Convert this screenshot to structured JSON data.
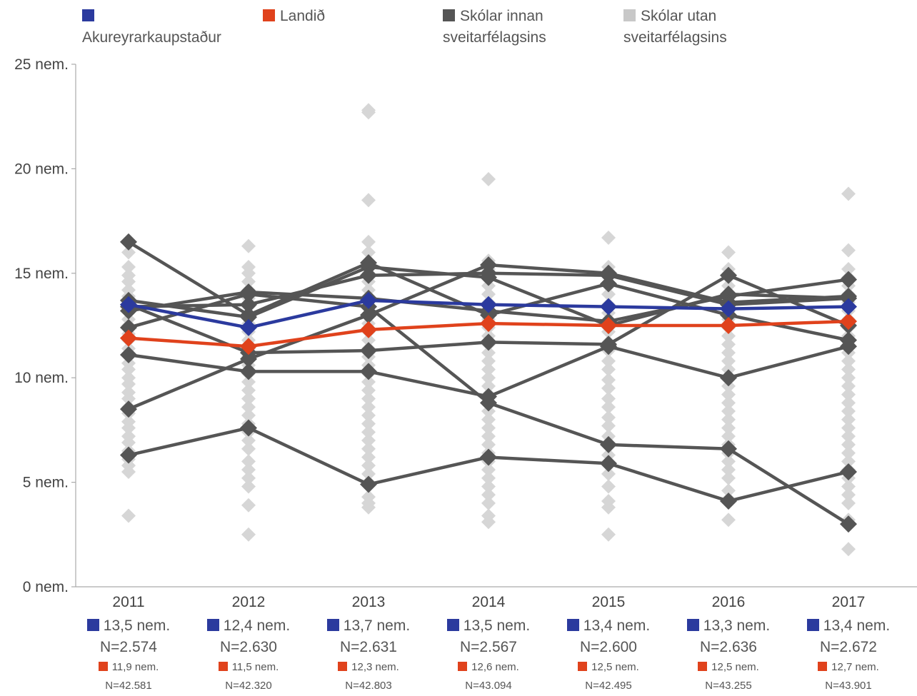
{
  "legend": [
    {
      "label": "Akureyrarkaupstaður",
      "color": "#2b3a9e"
    },
    {
      "label": "Landið",
      "color": "#e0421c"
    },
    {
      "label": "Skólar innan sveitarfélagsins",
      "color": "#555555"
    },
    {
      "label": "Skólar utan sveitarfélagsins",
      "color": "#c8c8c8"
    }
  ],
  "stats": [
    {
      "muni_value": "13,5 nem.",
      "muni_n": "N=2.574",
      "country_value": "11,9 nem.",
      "country_n": "N=42.581"
    },
    {
      "muni_value": "12,4 nem.",
      "muni_n": "N=2.630",
      "country_value": "11,5 nem.",
      "country_n": "N=42.320"
    },
    {
      "muni_value": "13,7 nem.",
      "muni_n": "N=2.631",
      "country_value": "12,3 nem.",
      "country_n": "N=42.803"
    },
    {
      "muni_value": "13,5 nem.",
      "muni_n": "N=2.567",
      "country_value": "12,6 nem.",
      "country_n": "N=43.094"
    },
    {
      "muni_value": "13,4 nem.",
      "muni_n": "N=2.600",
      "country_value": "12,5 nem.",
      "country_n": "N=42.495"
    },
    {
      "muni_value": "13,3 nem.",
      "muni_n": "N=2.636",
      "country_value": "12,5 nem.",
      "country_n": "N=43.255"
    },
    {
      "muni_value": "13,4 nem.",
      "muni_n": "N=2.672",
      "country_value": "12,7 nem.",
      "country_n": "N=43.901"
    }
  ],
  "chart_data": {
    "type": "line",
    "x": [
      "2011",
      "2012",
      "2013",
      "2014",
      "2015",
      "2016",
      "2017"
    ],
    "ylim": [
      0,
      25
    ],
    "yticks": [
      0,
      5,
      10,
      15,
      20,
      25
    ],
    "ytick_labels": [
      "0 nem.",
      "5 nem.",
      "10 nem.",
      "15 nem.",
      "20 nem.",
      "25 nem."
    ],
    "grid": false,
    "legend_position": "top",
    "municipality": {
      "name": "Akureyrarkaupstaður",
      "color": "#2b3a9e",
      "values": [
        13.5,
        12.4,
        13.7,
        13.5,
        13.4,
        13.3,
        13.4
      ]
    },
    "country": {
      "name": "Landið",
      "color": "#e0421c",
      "values": [
        11.9,
        11.5,
        12.3,
        12.6,
        12.5,
        12.5,
        12.7
      ]
    },
    "schools_inside": {
      "name": "Skólar innan sveitarfélagsins",
      "color": "#555555",
      "series": [
        [
          16.5,
          13.0,
          15.5,
          13.0,
          14.5,
          13.0,
          11.8
        ],
        [
          13.7,
          12.9,
          15.3,
          14.8,
          12.5,
          14.0,
          13.8
        ],
        [
          13.2,
          14.1,
          13.8,
          13.2,
          12.7,
          13.9,
          14.7
        ],
        [
          12.4,
          14.0,
          13.4,
          8.8,
          6.8,
          6.6,
          3.0
        ],
        [
          11.1,
          10.3,
          10.3,
          9.1,
          11.5,
          10.0,
          11.5
        ],
        [
          8.5,
          10.9,
          13.0,
          15.4,
          15.0,
          13.6,
          13.9
        ],
        [
          6.3,
          7.6,
          4.9,
          6.2,
          5.9,
          4.1,
          5.5
        ],
        [
          13.5,
          11.2,
          11.3,
          11.7,
          11.6,
          14.9,
          12.5
        ],
        [
          13.4,
          13.5,
          14.9,
          15.0,
          14.9,
          13.5,
          13.8
        ]
      ]
    },
    "schools_outside": {
      "name": "Skólar utan sveitarfélagsins",
      "color": "#d6d6d6",
      "values": [
        [
          3.4,
          5.5,
          5.8,
          6.1,
          6.5,
          6.9,
          7.2,
          7.6,
          7.9,
          8.3,
          8.6,
          9.0,
          9.3,
          9.7,
          10.0,
          10.4,
          10.7,
          11.1,
          11.4,
          11.8,
          12.1,
          12.5,
          12.8,
          13.2,
          13.5,
          13.9,
          14.2,
          14.6,
          14.9,
          15.3,
          16.0
        ],
        [
          2.5,
          3.9,
          4.8,
          5.2,
          5.6,
          6.0,
          6.6,
          7.0,
          7.4,
          7.8,
          8.2,
          8.6,
          9.0,
          9.4,
          9.8,
          10.2,
          10.6,
          11.0,
          11.4,
          11.8,
          12.2,
          12.6,
          13.0,
          13.4,
          13.8,
          14.2,
          14.6,
          15.0,
          15.3,
          16.3
        ],
        [
          3.8,
          4.0,
          4.3,
          5.0,
          5.4,
          5.8,
          6.2,
          6.6,
          7.0,
          7.4,
          7.8,
          8.2,
          8.6,
          9.0,
          9.4,
          9.8,
          10.2,
          10.6,
          11.0,
          11.4,
          11.8,
          12.2,
          12.6,
          13.0,
          13.4,
          13.8,
          14.2,
          14.6,
          15.0,
          16.0,
          16.5,
          18.5,
          22.7,
          22.8
        ],
        [
          3.1,
          3.4,
          4.0,
          4.4,
          4.8,
          5.2,
          5.6,
          6.0,
          6.4,
          6.8,
          7.2,
          7.6,
          8.0,
          8.4,
          8.8,
          9.2,
          9.6,
          10.0,
          10.4,
          10.8,
          11.2,
          11.6,
          12.0,
          12.4,
          12.8,
          13.2,
          13.6,
          14.0,
          14.4,
          14.8,
          15.2,
          15.6,
          19.5
        ],
        [
          2.5,
          3.8,
          4.1,
          4.8,
          5.4,
          5.9,
          6.3,
          6.8,
          7.2,
          7.7,
          8.1,
          8.6,
          9.0,
          9.5,
          9.9,
          10.4,
          10.8,
          11.3,
          11.7,
          12.2,
          12.6,
          13.1,
          13.5,
          14.0,
          14.4,
          14.9,
          15.3,
          16.7
        ],
        [
          3.2,
          4.2,
          4.6,
          5.2,
          5.6,
          6.0,
          6.4,
          6.8,
          7.2,
          7.6,
          8.0,
          8.4,
          8.8,
          9.2,
          9.6,
          10.0,
          10.4,
          10.8,
          11.2,
          11.6,
          12.0,
          12.4,
          12.8,
          13.2,
          13.6,
          14.0,
          14.4,
          14.8,
          15.2,
          16.0
        ],
        [
          1.8,
          3.2,
          4.0,
          4.4,
          4.8,
          5.2,
          5.6,
          6.0,
          6.4,
          6.8,
          7.2,
          7.6,
          8.0,
          8.4,
          8.8,
          9.2,
          9.6,
          10.0,
          10.4,
          10.8,
          11.2,
          11.6,
          12.0,
          12.4,
          12.8,
          13.2,
          13.6,
          14.0,
          14.4,
          14.8,
          15.2,
          16.1,
          18.8
        ]
      ]
    }
  }
}
